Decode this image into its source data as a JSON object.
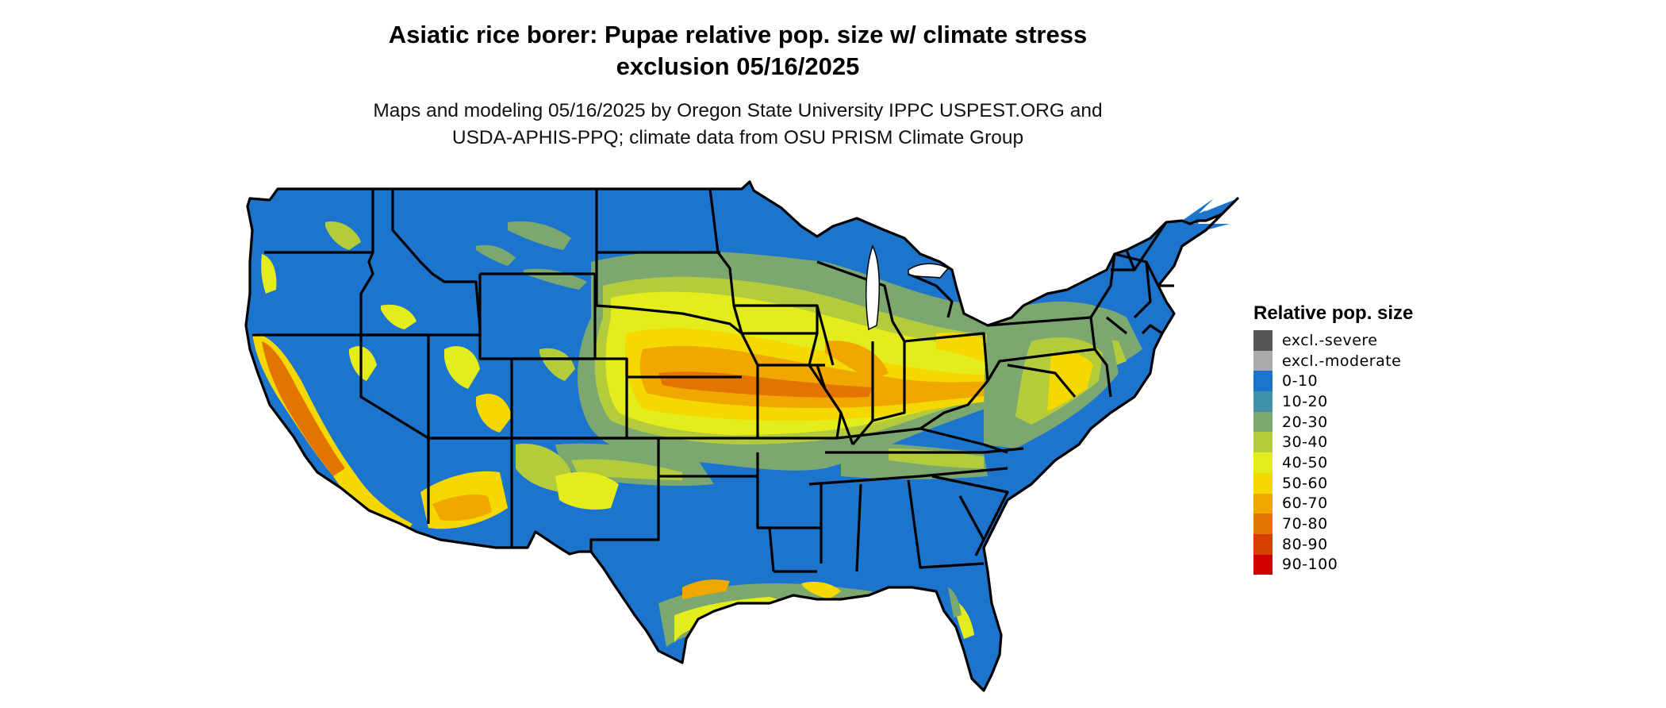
{
  "title": {
    "line1": "Asiatic rice borer: Pupae relative pop. size w/ climate stress",
    "line2": "exclusion 05/16/2025"
  },
  "subtitle": {
    "line1": "Maps and modeling 05/16/2025 by Oregon State University IPPC USPEST.ORG and",
    "line2": "USDA-APHIS-PPQ; climate data from OSU PRISM Climate Group"
  },
  "legend": {
    "title": "Relative pop. size",
    "items": [
      {
        "label": "excl.-severe",
        "color": "#555555"
      },
      {
        "label": "excl.-moderate",
        "color": "#aaaaaa"
      },
      {
        "label": "0-10",
        "color": "#1c74cc"
      },
      {
        "label": "10-20",
        "color": "#4090a8"
      },
      {
        "label": "20-30",
        "color": "#7ca870"
      },
      {
        "label": "30-40",
        "color": "#b4cc3c"
      },
      {
        "label": "40-50",
        "color": "#e4ec1c"
      },
      {
        "label": "50-60",
        "color": "#f4d800"
      },
      {
        "label": "60-70",
        "color": "#f0a800"
      },
      {
        "label": "70-80",
        "color": "#e47400"
      },
      {
        "label": "80-90",
        "color": "#d84000"
      },
      {
        "label": "90-100",
        "color": "#d00000"
      }
    ]
  }
}
